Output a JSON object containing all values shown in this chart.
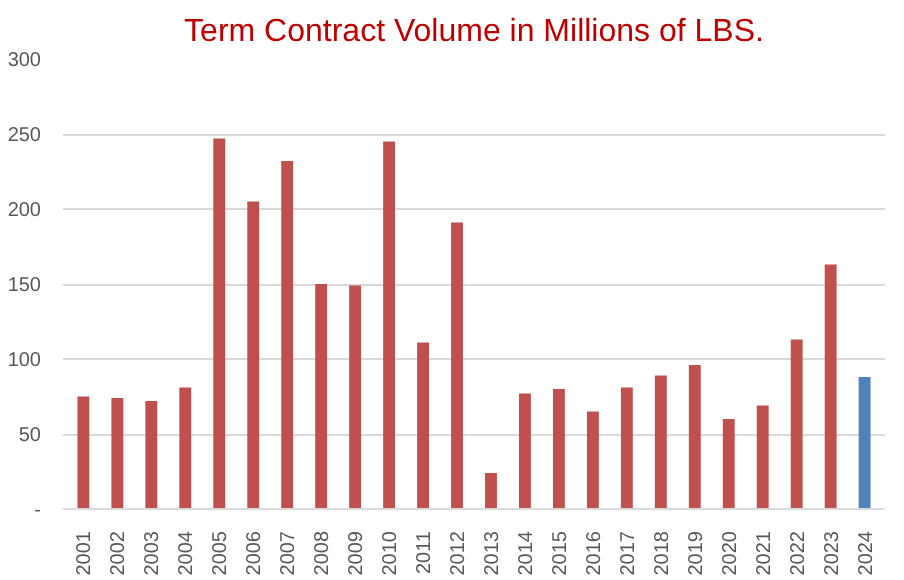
{
  "chart_data": {
    "type": "bar",
    "title": "Term Contract Volume in Millions of LBS.",
    "categories": [
      "2001",
      "2002",
      "2003",
      "2004",
      "2005",
      "2006",
      "2007",
      "2008",
      "2009",
      "2010",
      "2011",
      "2012",
      "2013",
      "2014",
      "2015",
      "2016",
      "2017",
      "2018",
      "2019",
      "2020",
      "2021",
      "2022",
      "2023",
      "2024"
    ],
    "values": [
      75,
      74,
      72,
      81,
      247,
      205,
      232,
      150,
      149,
      245,
      111,
      191,
      24,
      77,
      80,
      65,
      81,
      89,
      96,
      60,
      69,
      113,
      163,
      88
    ],
    "colors": [
      "#c0504d",
      "#c0504d",
      "#c0504d",
      "#c0504d",
      "#c0504d",
      "#c0504d",
      "#c0504d",
      "#c0504d",
      "#c0504d",
      "#c0504d",
      "#c0504d",
      "#c0504d",
      "#c0504d",
      "#c0504d",
      "#c0504d",
      "#c0504d",
      "#c0504d",
      "#c0504d",
      "#c0504d",
      "#c0504d",
      "#c0504d",
      "#c0504d",
      "#c0504d",
      "#4f81bd"
    ],
    "ylim": [
      0,
      300
    ],
    "yticks": [
      {
        "value": 0,
        "label": "-"
      },
      50,
      100,
      150,
      200,
      250,
      300
    ],
    "grid": "y"
  }
}
